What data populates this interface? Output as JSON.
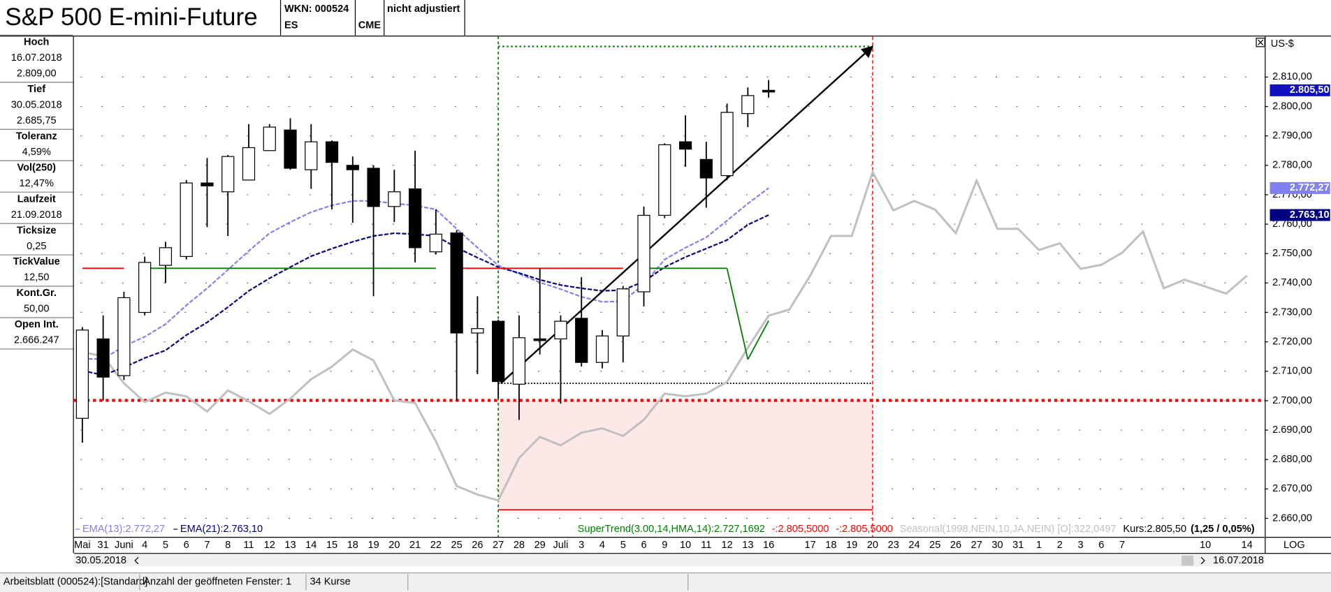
{
  "header": {
    "wkn": "WKN: 000524",
    "symbol": "ES",
    "exchange": "CME",
    "adjustment": "nicht adjustiert"
  },
  "sidebar": [
    {
      "label": "Hoch",
      "lines": [
        "16.07.2018",
        "2.809,00"
      ]
    },
    {
      "label": "Tief",
      "lines": [
        "30.05.2018",
        "2.685,75"
      ]
    },
    {
      "label": "Toleranz",
      "lines": [
        "4,59%"
      ]
    },
    {
      "label": "Vol(250)",
      "lines": [
        "12,47%"
      ]
    },
    {
      "label": "Laufzeit",
      "lines": [
        "21.09.2018"
      ]
    },
    {
      "label": "Ticksize",
      "lines": [
        "0,25"
      ]
    },
    {
      "label": "TickValue",
      "lines": [
        "12,50"
      ]
    },
    {
      "label": "Kont.Gr.",
      "lines": [
        "50,00"
      ]
    },
    {
      "label": "Open Int.",
      "lines": [
        "2.666.247"
      ]
    }
  ],
  "status": [
    "Arbeitsblatt (000524):[Standard]",
    "Anzahl der geöffneten Fenster: 1",
    "34 Kurse"
  ],
  "chart_data": {
    "type": "candlestick",
    "title": "S&P 500 E-mini-Future",
    "y_unit": "US-$",
    "scale_label": "LOG",
    "range_start": "30.05.2018",
    "range_end": "16.07.2018",
    "grid": true,
    "categories": [
      "Mai",
      "31",
      "Juni",
      "4",
      "5",
      "6",
      "7",
      "8",
      "11",
      "12",
      "13",
      "14",
      "15",
      "18",
      "19",
      "20",
      "21",
      "22",
      "25",
      "26",
      "27",
      "28",
      "29",
      "Juli",
      "3",
      "4",
      "5",
      "6",
      "9",
      "10",
      "11",
      "12",
      "13",
      "16",
      null,
      "17",
      "18",
      "19",
      "20",
      "23",
      "24",
      "25",
      "26",
      "27",
      "30",
      "31",
      "1",
      "2",
      "3",
      "6",
      "7",
      null,
      null,
      null,
      "10",
      null,
      "14"
    ],
    "ylim": [
      2653.7,
      2823.8
    ],
    "yticks": [
      {
        "value": 2660,
        "label": "2.660,00"
      },
      {
        "value": 2670,
        "label": "2.670,00"
      },
      {
        "value": 2680,
        "label": "2.680,00"
      },
      {
        "value": 2690,
        "label": "2.690,00"
      },
      {
        "value": 2700,
        "label": "2.700,00"
      },
      {
        "value": 2710,
        "label": "2.710,00"
      },
      {
        "value": 2720,
        "label": "2.720,00"
      },
      {
        "value": 2730,
        "label": "2.730,00"
      },
      {
        "value": 2740,
        "label": "2.740,00"
      },
      {
        "value": 2750,
        "label": "2.750,00"
      },
      {
        "value": 2760,
        "label": "2.760,00"
      },
      {
        "value": 2770,
        "label": "2.770,00"
      },
      {
        "value": 2780,
        "label": "2.780,00"
      },
      {
        "value": 2790,
        "label": "2.790,00"
      },
      {
        "value": 2800,
        "label": "2.800,00"
      },
      {
        "value": 2810,
        "label": "2.810,00"
      }
    ],
    "candles": {
      "up_color": "#ffffff",
      "down_color": "#000000",
      "last_label": "2.805,50",
      "last_label_color": "#1010c0",
      "open": [
        2694,
        2721,
        2708.5,
        2730,
        2746,
        2749,
        2774,
        2771,
        2775,
        2785,
        2792,
        2778.5,
        2788,
        2780,
        2779,
        2766,
        2772,
        2750.6,
        2757,
        2723,
        2727,
        2705.6,
        2721,
        2721,
        2728,
        2713,
        2722,
        2737,
        2763,
        2788,
        2782,
        2776.5,
        2797.6,
        2805.5,
        null,
        null,
        null,
        null,
        null,
        null,
        null,
        null,
        null,
        null,
        null,
        null,
        null,
        null,
        null,
        null,
        null,
        null,
        null,
        null,
        null,
        null,
        null
      ],
      "high": [
        2725,
        2729,
        2737,
        2749,
        2754,
        2775,
        2782.5,
        2783.5,
        2794,
        2794,
        2796,
        2794,
        2788.5,
        2783,
        2780,
        2778.5,
        2785,
        2765,
        2758,
        2735.5,
        2727.5,
        2729,
        2745,
        2729,
        2742,
        2724,
        2739,
        2766,
        2787.5,
        2797,
        2788,
        2801,
        2806.5,
        2809,
        null,
        null,
        null,
        null,
        null,
        null,
        null,
        null,
        null,
        null,
        null,
        null,
        null,
        null,
        null,
        null,
        null,
        null,
        null,
        null,
        null,
        null,
        null
      ],
      "low": [
        2685.75,
        2700,
        2707,
        2729,
        2740,
        2748,
        2759,
        2756,
        2775,
        2785,
        2778.5,
        2772,
        2765,
        2760.5,
        2735.5,
        2760.7,
        2747,
        2749.7,
        2700,
        2709,
        2700.7,
        2693.5,
        2715.7,
        2699,
        2711.6,
        2711,
        2713,
        2732,
        2762,
        2779.5,
        2765.6,
        2775,
        2793,
        2803,
        null,
        null,
        null,
        null,
        null,
        null,
        null,
        null,
        null,
        null,
        null,
        null,
        null,
        null,
        null,
        null,
        null,
        null,
        null,
        null,
        null,
        null,
        null
      ],
      "close": [
        2724,
        2708,
        2735,
        2747,
        2752,
        2774,
        2773,
        2783,
        2786,
        2793,
        2779,
        2788,
        2781,
        2778.5,
        2766,
        2771,
        2752,
        2756.6,
        2723,
        2724.5,
        2706.5,
        2721.4,
        2721,
        2727,
        2713,
        2722,
        2738,
        2763,
        2787,
        2785.5,
        2775.7,
        2798,
        2803.7,
        2805.5,
        null,
        null,
        null,
        null,
        null,
        null,
        null,
        null,
        null,
        null,
        null,
        null,
        null,
        null,
        null,
        null,
        null,
        null,
        null,
        null,
        null,
        null,
        null
      ]
    },
    "series": [
      {
        "name": "EMA(13):2.772,27",
        "color": "#8080f0",
        "last_label": "2.772,27",
        "values": [
          2714.2,
          2714.2,
          2718.5,
          2721.7,
          2726,
          2732.4,
          2738.2,
          2744.5,
          2750.9,
          2756.9,
          2760.7,
          2764.1,
          2766.4,
          2767.9,
          2767.9,
          2767,
          2766.4,
          2765,
          2758.4,
          2752,
          2746,
          2743.1,
          2740.2,
          2737.9,
          2735.3,
          2733.6,
          2733.8,
          2739.6,
          2748,
          2752,
          2755.5,
          2761.2,
          2767,
          2772.27,
          null,
          null,
          null,
          null,
          null,
          null,
          null,
          null,
          null,
          null,
          null,
          null,
          null,
          null,
          null,
          null,
          null,
          null,
          null,
          null,
          null,
          null,
          null
        ]
      },
      {
        "name": "EMA(21):2.763,10",
        "color": "#000080",
        "last_label": "2.763,10",
        "values": [
          2710.2,
          2708.7,
          2711.3,
          2714.5,
          2717.1,
          2722.3,
          2726.6,
          2731.8,
          2737.3,
          2741.6,
          2745.4,
          2749.1,
          2751.7,
          2754,
          2756,
          2756.9,
          2756.6,
          2756,
          2752,
          2748.6,
          2745.4,
          2743.4,
          2741.1,
          2739.3,
          2738.2,
          2737.3,
          2737.6,
          2740.5,
          2745.4,
          2748.8,
          2751.7,
          2754.6,
          2759.8,
          2763.1,
          null,
          null,
          null,
          null,
          null,
          null,
          null,
          null,
          null,
          null,
          null,
          null,
          null,
          null,
          null,
          null,
          null,
          null,
          null,
          null,
          null,
          null,
          null
        ]
      }
    ],
    "supertrend": {
      "name": "SuperTrend(3.00,14,HMA,14):2.727,1692",
      "color": "#008000",
      "values": [
        2745,
        2745,
        2745,
        2745,
        2745,
        2745,
        2745,
        2745,
        2745,
        2745,
        2745,
        2745,
        2745,
        2745,
        2745,
        2745,
        2745,
        2745,
        2745,
        2745,
        2745,
        2745,
        2745,
        2745,
        2745,
        2745,
        2745,
        2745,
        2745,
        2745,
        2745,
        2745,
        2714,
        2727.17,
        null,
        null,
        null,
        null,
        null,
        null,
        null,
        null,
        null,
        null,
        null,
        null,
        null,
        null,
        null,
        null,
        null,
        null,
        null,
        null,
        null,
        null,
        null
      ],
      "colors": [
        "#ff0000",
        "#ff0000",
        "#ff0000",
        "#008000",
        "#008000",
        "#008000",
        "#008000",
        "#008000",
        "#008000",
        "#008000",
        "#008000",
        "#008000",
        "#008000",
        "#008000",
        "#008000",
        "#008000",
        "#008000",
        "#008000",
        "#ff0000",
        "#ff0000",
        "#ff0000",
        "#ff0000",
        "#ff0000",
        "#ff0000",
        "#ff0000",
        "#ff0000",
        "#ff0000",
        "#008000",
        "#008000",
        "#008000",
        "#008000",
        "#008000",
        "#008000",
        "#008000",
        null,
        null,
        null,
        null,
        null,
        null,
        null,
        null,
        null,
        null,
        null,
        null,
        null,
        null,
        null,
        null,
        null,
        null,
        null,
        null,
        null,
        null,
        null
      ]
    },
    "red_labels": [
      "-:2.805,5000",
      "-:2.805,5000"
    ],
    "red_color": "#ff0000",
    "seasonal": {
      "name": "Seasonal(1998,NEIN,10,JA,NEIN) [O]:322,0497",
      "color": "#c0c0c0",
      "values": [
        2716.5,
        2715.1,
        2705.9,
        2699.5,
        2702.7,
        2701.5,
        2696.3,
        2703.5,
        2699.8,
        2695.5,
        2700.7,
        2707.3,
        2711.6,
        2717.4,
        2713.7,
        2700.1,
        2699.2,
        2686.2,
        2671,
        2668.1,
        2666.1,
        2680.5,
        2687.7,
        2684.8,
        2689.1,
        2690.6,
        2688,
        2693.5,
        2702.4,
        2701.5,
        2702.4,
        2706.4,
        2718,
        2728.9,
        2731,
        2742.5,
        2756,
        2756,
        2777.7,
        2764.7,
        2767.9,
        2765,
        2756.9,
        2774.8,
        2758.4,
        2758.4,
        2751.2,
        2753.5,
        2744.8,
        2746.2,
        2750.3,
        2757.5,
        2738.2,
        2741.1,
        2738.8,
        2736.4,
        2742.5
      ]
    },
    "price_label": "Kurs:2.805,50",
    "change_label": "(1,25 / 0,05%)",
    "zone": {
      "start_index": 20,
      "end_index": 38,
      "top": 2820.4,
      "entry": 2705.9,
      "stop": 2700.1,
      "bottom": 2662.9,
      "fill": "#fde8e8"
    }
  }
}
